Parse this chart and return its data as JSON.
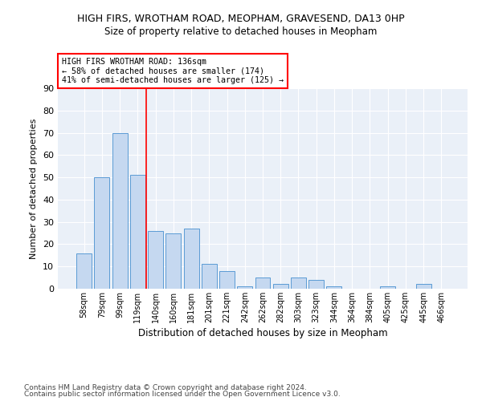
{
  "title1": "HIGH FIRS, WROTHAM ROAD, MEOPHAM, GRAVESEND, DA13 0HP",
  "title2": "Size of property relative to detached houses in Meopham",
  "xlabel": "Distribution of detached houses by size in Meopham",
  "ylabel": "Number of detached properties",
  "categories": [
    "58sqm",
    "79sqm",
    "99sqm",
    "119sqm",
    "140sqm",
    "160sqm",
    "181sqm",
    "201sqm",
    "221sqm",
    "242sqm",
    "262sqm",
    "282sqm",
    "303sqm",
    "323sqm",
    "344sqm",
    "364sqm",
    "384sqm",
    "405sqm",
    "425sqm",
    "445sqm",
    "466sqm"
  ],
  "values": [
    16,
    50,
    70,
    51,
    26,
    25,
    27,
    11,
    8,
    1,
    5,
    2,
    5,
    4,
    1,
    0,
    0,
    1,
    0,
    2,
    0
  ],
  "bar_color": "#c5d8f0",
  "bar_edge_color": "#5b9bd5",
  "vline_color": "red",
  "annotation_text": "HIGH FIRS WROTHAM ROAD: 136sqm\n← 58% of detached houses are smaller (174)\n41% of semi-detached houses are larger (125) →",
  "annotation_box_color": "white",
  "annotation_box_edge_color": "red",
  "ylim": [
    0,
    90
  ],
  "yticks": [
    0,
    10,
    20,
    30,
    40,
    50,
    60,
    70,
    80,
    90
  ],
  "footer1": "Contains HM Land Registry data © Crown copyright and database right 2024.",
  "footer2": "Contains public sector information licensed under the Open Government Licence v3.0.",
  "plot_bg_color": "#eaf0f8"
}
